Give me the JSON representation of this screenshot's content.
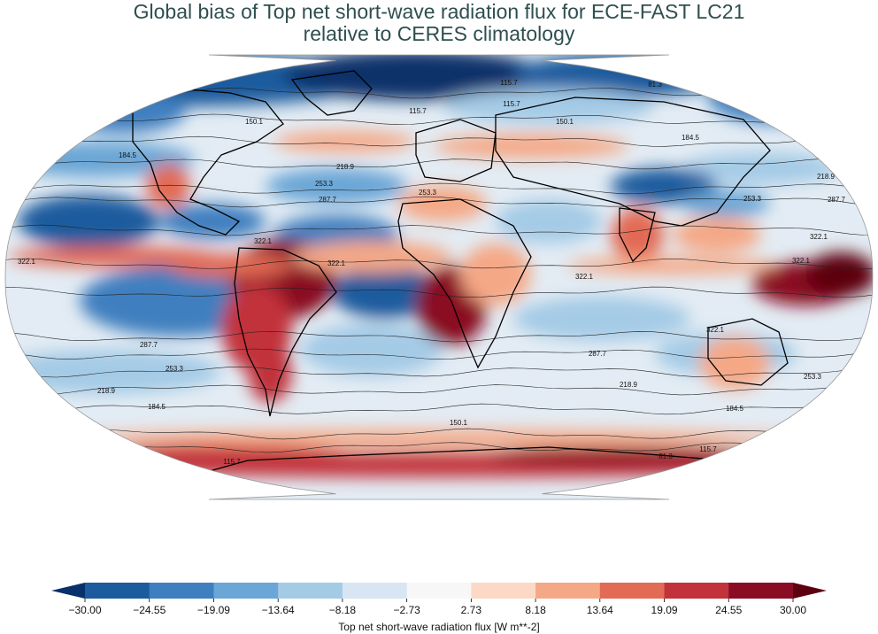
{
  "title_line1": "Global bias of Top net short-wave radiation flux for ECE-FAST LC21",
  "title_line2": "relative to CERES climatology",
  "colorbar": {
    "label": "Top net short-wave radiation flux [W m**-2]",
    "ticks": [
      "−30.00",
      "−24.55",
      "−19.09",
      "−13.64",
      "−8.18",
      "−2.73",
      "2.73",
      "8.18",
      "13.64",
      "19.09",
      "24.55",
      "30.00"
    ],
    "colors": [
      "#08306b",
      "#1c5b9e",
      "#3f7fbf",
      "#6aa6d6",
      "#a4cbe6",
      "#d7e6f2",
      "#f7f7f7",
      "#fbd9c6",
      "#f5a886",
      "#e26b55",
      "#c2323a",
      "#8a0c24",
      "#5d0010"
    ]
  },
  "map": {
    "projection": "Robinson",
    "ocean_color": "#dfe9f2",
    "land_outline_color": "#000000",
    "contour_levels": [
      "81.3",
      "115.7",
      "150.1",
      "184.5",
      "218.9",
      "253.3",
      "287.7",
      "322.1"
    ]
  }
}
